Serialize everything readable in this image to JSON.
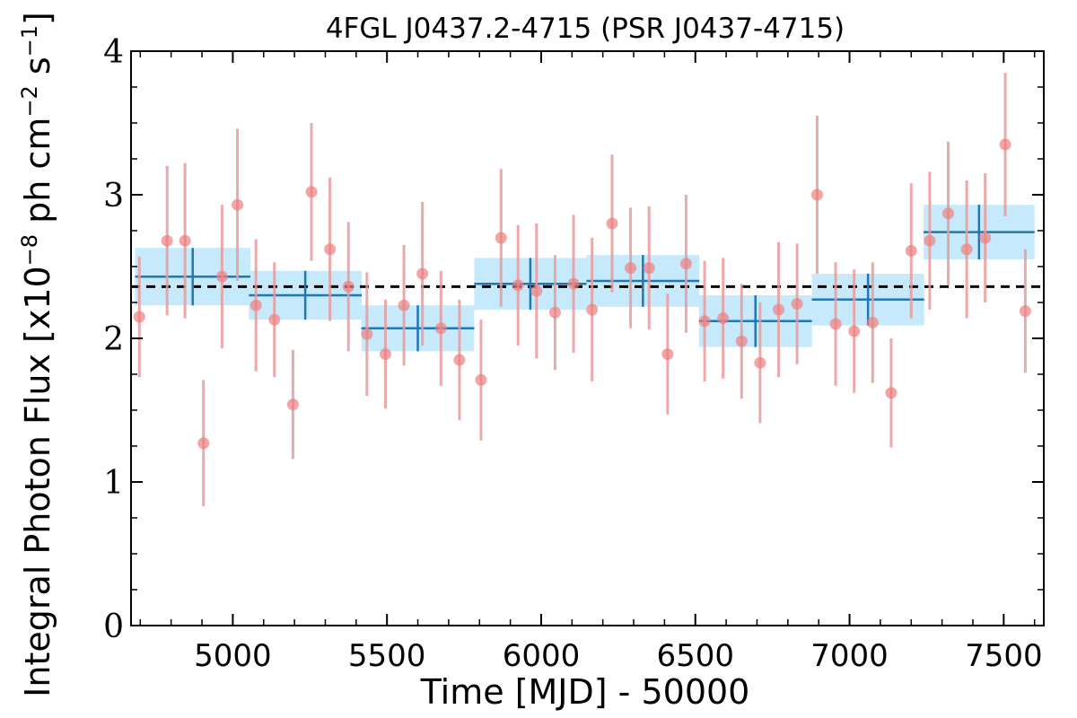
{
  "chart_data": {
    "type": "scatter",
    "title": "4FGL J0437.2-4715 (PSR J0437-4715)",
    "xlabel": "Time [MJD] - 50000",
    "ylabel": "Integral Photon Flux [x10",
    "ylabel_exp": "−8",
    "ylabel_mid": " ph cm",
    "ylabel_exp2": "−2",
    "ylabel_end": " s",
    "ylabel_exp3": "−1",
    "ylabel_close": "]",
    "xlim": [
      4670,
      7630
    ],
    "ylim": [
      0,
      4
    ],
    "xticks": [
      5000,
      5500,
      6000,
      6500,
      7000,
      7500
    ],
    "xtick_labels": [
      "5000",
      "5500",
      "6000",
      "6500",
      "7000",
      "7500"
    ],
    "yticks": [
      0,
      1,
      2,
      3,
      4
    ],
    "ytick_labels": [
      "0",
      "1",
      "2",
      "3",
      "4"
    ],
    "average_flux": 2.36,
    "colors": {
      "points": "#ee7f7f",
      "error_bars": "#e89a9a",
      "bins_fill": "#c6e9fb",
      "bins_line": "#1f77b4",
      "average_line": "#000000"
    },
    "series": [
      {
        "kind": "short-timescale points",
        "x": [
          4697,
          4787,
          4845,
          4905,
          4965,
          5015,
          5075,
          5135,
          5195,
          5255,
          5315,
          5375,
          5435,
          5495,
          5555,
          5615,
          5675,
          5735,
          5805,
          5870,
          5925,
          5985,
          6045,
          6105,
          6165,
          6230,
          6290,
          6350,
          6410,
          6470,
          6530,
          6590,
          6650,
          6710,
          6770,
          6830,
          6895,
          6955,
          7015,
          7075,
          7135,
          7200,
          7260,
          7320,
          7380,
          7440,
          7505,
          7570
        ],
        "y": [
          2.15,
          2.68,
          2.68,
          1.27,
          2.43,
          2.93,
          2.23,
          2.13,
          1.54,
          3.02,
          2.62,
          2.36,
          2.03,
          1.89,
          2.23,
          2.45,
          2.07,
          1.85,
          1.71,
          2.7,
          2.37,
          2.33,
          2.18,
          2.38,
          2.2,
          2.8,
          2.49,
          2.49,
          1.89,
          2.52,
          2.12,
          2.14,
          1.98,
          1.83,
          2.2,
          2.24,
          3.0,
          2.1,
          2.05,
          2.11,
          1.62,
          2.61,
          2.68,
          2.87,
          2.62,
          2.7,
          3.35,
          2.19
        ],
        "yerr": [
          0.42,
          0.52,
          0.54,
          0.44,
          0.5,
          0.53,
          0.46,
          0.4,
          0.38,
          0.48,
          0.5,
          0.45,
          0.43,
          0.38,
          0.42,
          0.5,
          0.4,
          0.42,
          0.42,
          0.48,
          0.42,
          0.47,
          0.4,
          0.48,
          0.5,
          0.48,
          0.42,
          0.43,
          0.42,
          0.48,
          0.42,
          0.42,
          0.4,
          0.42,
          0.47,
          0.42,
          0.55,
          0.43,
          0.43,
          0.42,
          0.38,
          0.47,
          0.48,
          0.5,
          0.48,
          0.45,
          0.5,
          0.43
        ]
      },
      {
        "kind": "long-timescale bins",
        "x": [
          4870,
          5235,
          5600,
          5965,
          6330,
          6695,
          7060,
          7420
        ],
        "y": [
          2.43,
          2.3,
          2.07,
          2.38,
          2.4,
          2.12,
          2.27,
          2.74
        ],
        "yerr": [
          0.2,
          0.17,
          0.16,
          0.18,
          0.18,
          0.18,
          0.18,
          0.19
        ],
        "xerr": [
          187,
          183,
          183,
          182,
          183,
          183,
          182,
          180
        ]
      }
    ]
  }
}
